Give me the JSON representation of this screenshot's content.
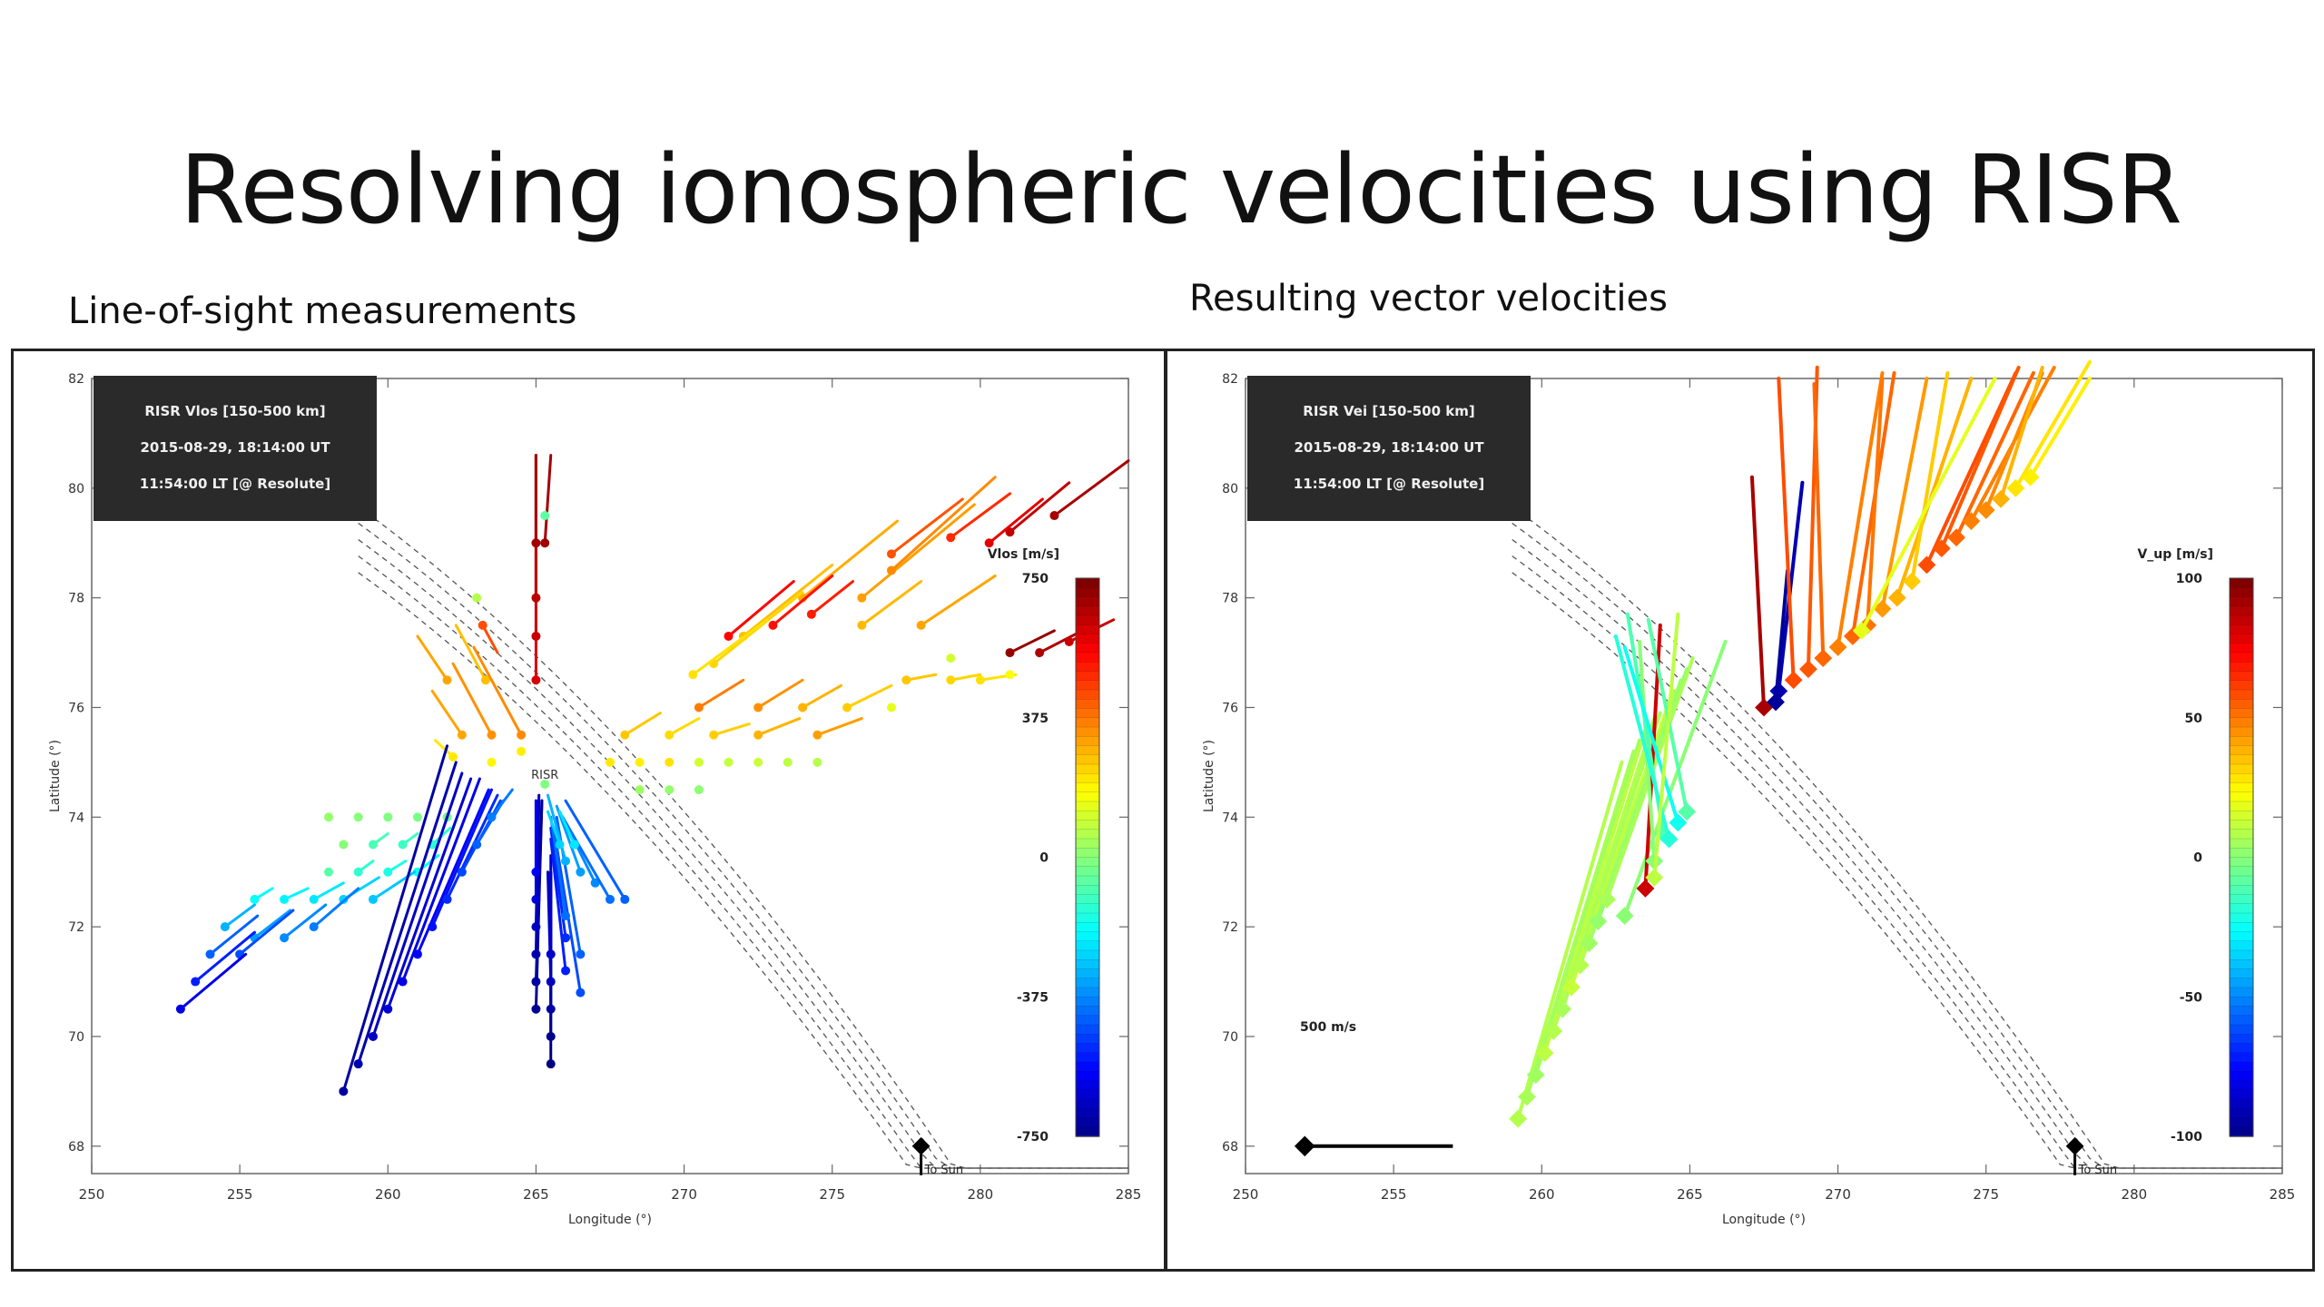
{
  "title": "Resolving ionospheric velocities using RISR",
  "left_panel_label": "Line-of-sight measurements",
  "right_panel_label": "Resulting vector velocities",
  "colors": {
    "panel_border": "#222222",
    "annotation_bg": "#2a2a2a",
    "contour": "#555555"
  },
  "chart_data": [
    {
      "type": "scatter",
      "subtype": "vector-map",
      "annotation": [
        "RISR Vlos [150-500 km]",
        "2015-08-29, 18:14:00 UT",
        "11:54:00 LT [@ Resolute]"
      ],
      "xlabel": "Longitude (°)",
      "ylabel": "Latitude (°)",
      "xlim": [
        250,
        285
      ],
      "ylim": [
        67.5,
        82
      ],
      "xticks": [
        "250",
        "255",
        "260",
        "265",
        "270",
        "275",
        "280",
        "285"
      ],
      "yticks": [
        "68",
        "70",
        "72",
        "74",
        "76",
        "78",
        "80",
        "82"
      ],
      "site_label": "RISR",
      "site": [
        265.3,
        74.6
      ],
      "sun_label": "To Sun",
      "colorbar": {
        "label": "Vlos [m/s]",
        "range": [
          -750,
          750
        ],
        "ticks": [
          "750",
          "375",
          "0",
          "-375",
          "-750"
        ]
      },
      "vectors": [
        [
          265,
          76.5,
          0,
          4.1,
          620
        ],
        [
          265,
          77.3,
          0,
          3.3,
          640
        ],
        [
          265,
          78,
          0,
          2.6,
          660
        ],
        [
          265,
          79,
          0,
          1.6,
          700
        ],
        [
          265.3,
          79,
          0.2,
          1.6,
          700
        ],
        [
          265.3,
          79.5,
          0,
          0,
          -50
        ],
        [
          276,
          78,
          3.8,
          1.7,
          330
        ],
        [
          277,
          78.5,
          3.5,
          1.7,
          360
        ],
        [
          274,
          78,
          3.2,
          1.4,
          310
        ],
        [
          272,
          77.3,
          3,
          1.3,
          280
        ],
        [
          271,
          76.8,
          3,
          1.3,
          250
        ],
        [
          270.3,
          76.6,
          2.5,
          1,
          230
        ],
        [
          276,
          77.5,
          2,
          0.8,
          290
        ],
        [
          278,
          77.5,
          2.5,
          0.9,
          320
        ],
        [
          282.5,
          79.5,
          2.5,
          1,
          690
        ],
        [
          281,
          79.2,
          2,
          0.9,
          650
        ],
        [
          280.3,
          79,
          1.8,
          0.8,
          600
        ],
        [
          277,
          78.8,
          2.4,
          1,
          440
        ],
        [
          279,
          79.1,
          2,
          0.8,
          500
        ],
        [
          274.3,
          77.7,
          1.4,
          0.6,
          520
        ],
        [
          271.5,
          77.3,
          2.2,
          1,
          560
        ],
        [
          273,
          77.5,
          2,
          0.9,
          540
        ],
        [
          281,
          77,
          1.5,
          0.4,
          720
        ],
        [
          282,
          77,
          1.8,
          0.5,
          680
        ],
        [
          283,
          77.2,
          1.5,
          0.4,
          640
        ],
        [
          279,
          76.9,
          0,
          0,
          120
        ],
        [
          270.5,
          76,
          1.5,
          0.5,
          380
        ],
        [
          272.5,
          76,
          1.5,
          0.5,
          350
        ],
        [
          274,
          76,
          1.3,
          0.4,
          300
        ],
        [
          275.5,
          76,
          1.5,
          0.4,
          260
        ],
        [
          277,
          76,
          0,
          0,
          150
        ],
        [
          277.5,
          76.5,
          1,
          0.1,
          270
        ],
        [
          279,
          76.5,
          1,
          0.1,
          250
        ],
        [
          280,
          76.5,
          1.2,
          0.1,
          230
        ],
        [
          281,
          76.6,
          0,
          0,
          180
        ],
        [
          268,
          75.5,
          1.2,
          0.4,
          270
        ],
        [
          269.5,
          75.5,
          1,
          0.3,
          240
        ],
        [
          271,
          75.5,
          1.2,
          0.2,
          260
        ],
        [
          272.5,
          75.5,
          1.4,
          0.3,
          300
        ],
        [
          274.5,
          75.5,
          1.5,
          0.3,
          330
        ],
        [
          267.5,
          75,
          0,
          0,
          220
        ],
        [
          268.5,
          75,
          0,
          0,
          210
        ],
        [
          269.5,
          75,
          0,
          0,
          230
        ],
        [
          270.5,
          75,
          0,
          0,
          120
        ],
        [
          271.5,
          75,
          0,
          0,
          100
        ],
        [
          272.5,
          75,
          0,
          0,
          110
        ],
        [
          273.5,
          75,
          0,
          0,
          90
        ],
        [
          274.5,
          75,
          0,
          0,
          80
        ],
        [
          268.5,
          74.5,
          0,
          0,
          40
        ],
        [
          269.5,
          74.5,
          0,
          0,
          30
        ],
        [
          270.5,
          74.5,
          0,
          0,
          20
        ],
        [
          265.3,
          74.6,
          0,
          0,
          0
        ],
        [
          263.3,
          76.5,
          -1,
          1,
          280
        ],
        [
          262,
          76.5,
          -1,
          0.8,
          320
        ],
        [
          264.5,
          75.5,
          -1.6,
          1.6,
          360
        ],
        [
          263.5,
          75.5,
          -1.3,
          1.3,
          350
        ],
        [
          262.5,
          75.5,
          -1,
          0.8,
          320
        ],
        [
          262.2,
          75.1,
          -0.6,
          0.3,
          220
        ],
        [
          263.5,
          75,
          0,
          0,
          200
        ],
        [
          264.5,
          75.2,
          0,
          0,
          210
        ],
        [
          263,
          78,
          0,
          0,
          80
        ],
        [
          263.2,
          77.5,
          0.5,
          -0.5,
          450
        ],
        [
          258,
          74,
          0,
          0,
          30
        ],
        [
          259,
          74,
          0,
          0,
          10
        ],
        [
          260,
          74,
          0,
          0,
          0
        ],
        [
          261,
          74,
          0,
          0,
          -10
        ],
        [
          262,
          74,
          0,
          0,
          -20
        ],
        [
          258.5,
          73.5,
          0,
          0,
          10
        ],
        [
          259.5,
          73.5,
          0.5,
          0.2,
          -80
        ],
        [
          260.5,
          73.5,
          0.5,
          0.2,
          -100
        ],
        [
          261.5,
          73.5,
          0.6,
          0.3,
          -120
        ],
        [
          258,
          73,
          0,
          0,
          -60
        ],
        [
          259,
          73,
          0.5,
          0.2,
          -120
        ],
        [
          260,
          73,
          0.6,
          0.2,
          -150
        ],
        [
          261,
          73,
          0.7,
          0.3,
          -170
        ],
        [
          255.5,
          72.5,
          0.6,
          0.2,
          -180
        ],
        [
          256.5,
          72.5,
          0.8,
          0.2,
          -200
        ],
        [
          257.5,
          72.5,
          1,
          0.3,
          -220
        ],
        [
          258.5,
          72.5,
          1.2,
          0.4,
          -250
        ],
        [
          259.5,
          72.5,
          1.4,
          0.5,
          -270
        ],
        [
          254.5,
          72,
          1,
          0.4,
          -300
        ],
        [
          255.5,
          71.8,
          1.2,
          0.5,
          -330
        ],
        [
          256.5,
          71.8,
          1.4,
          0.6,
          -360
        ],
        [
          257.5,
          72,
          1.5,
          0.7,
          -380
        ],
        [
          254,
          71.5,
          1.6,
          0.7,
          -420
        ],
        [
          255,
          71.5,
          1.8,
          0.8,
          -450
        ],
        [
          253.5,
          71,
          2,
          0.9,
          -520
        ],
        [
          253,
          70.5,
          2.2,
          1,
          -600
        ],
        [
          258.5,
          69,
          3.5,
          6.3,
          -700
        ],
        [
          259,
          69.5,
          3.3,
          5.5,
          -680
        ],
        [
          259.5,
          70,
          3,
          4.8,
          -650
        ],
        [
          260,
          70.5,
          2.8,
          4.2,
          -630
        ],
        [
          260.5,
          71,
          2.6,
          3.7,
          -600
        ],
        [
          261,
          71.5,
          2.4,
          3,
          -570
        ],
        [
          261.5,
          72,
          2,
          2.5,
          -540
        ],
        [
          262,
          72.5,
          1.7,
          1.9,
          -500
        ],
        [
          262.5,
          73,
          1.3,
          1.3,
          -460
        ],
        [
          263,
          73.5,
          0.9,
          0.8,
          -420
        ],
        [
          263.5,
          74,
          0.7,
          0.5,
          -380
        ],
        [
          265,
          70.5,
          0.2,
          3.8,
          -720
        ],
        [
          265,
          71,
          0.2,
          3.3,
          -700
        ],
        [
          265,
          71.5,
          0.1,
          2.8,
          -680
        ],
        [
          265,
          72,
          0.1,
          2.4,
          -650
        ],
        [
          265,
          72.5,
          0,
          1.8,
          -620
        ],
        [
          265,
          73,
          0,
          1.3,
          -580
        ],
        [
          265.5,
          69.5,
          0,
          3.5,
          -760
        ],
        [
          265.5,
          70,
          0,
          3,
          -730
        ],
        [
          265.5,
          70.5,
          0,
          2.5,
          -700
        ],
        [
          265.5,
          71,
          -0.1,
          2,
          -660
        ],
        [
          265.5,
          71.5,
          0,
          1.8,
          -640
        ],
        [
          266,
          71.2,
          -0.5,
          2.4,
          -520
        ],
        [
          266,
          71.8,
          -0.5,
          2,
          -500
        ],
        [
          266.5,
          70.8,
          -0.9,
          3,
          -450
        ],
        [
          266.5,
          71.5,
          -0.8,
          2.5,
          -420
        ],
        [
          266,
          72.2,
          -0.5,
          1.8,
          -400
        ],
        [
          266,
          73.2,
          -0.6,
          1.2,
          -300
        ],
        [
          266.5,
          73,
          -0.8,
          1.2,
          -330
        ],
        [
          267,
          72.8,
          -1.2,
          1.3,
          -360
        ],
        [
          267.5,
          72.5,
          -1.6,
          1.5,
          -400
        ],
        [
          268,
          72.5,
          -2,
          1.8,
          -420
        ],
        [
          265.8,
          73.5,
          -0.4,
          0.6,
          -250
        ],
        [
          266.3,
          73.5,
          -0.5,
          0.6,
          -220
        ]
      ]
    },
    {
      "type": "scatter",
      "subtype": "vector-map",
      "annotation": [
        "RISR Vei [150-500 km]",
        "2015-08-29, 18:14:00 UT",
        "11:54:00 LT [@ Resolute]"
      ],
      "xlabel": "Longitude (°)",
      "ylabel": "Latitude (°)",
      "xlim": [
        250,
        285
      ],
      "ylim": [
        67.5,
        82
      ],
      "xticks": [
        "250",
        "255",
        "260",
        "265",
        "270",
        "275",
        "280",
        "285"
      ],
      "yticks": [
        "68",
        "70",
        "72",
        "74",
        "76",
        "78",
        "80",
        "82"
      ],
      "sun_label": "To Sun",
      "scale_label": "500 m/s",
      "colorbar": {
        "label": "V_up [m/s]",
        "range": [
          -100,
          100
        ],
        "ticks": [
          "100",
          "50",
          "0",
          "-50",
          "-100"
        ]
      },
      "vectors": [
        [
          259.2,
          68.5,
          3.5,
          6.5,
          10
        ],
        [
          259.5,
          68.9,
          3.6,
          6.3,
          8
        ],
        [
          259.8,
          69.3,
          3.5,
          6.1,
          6
        ],
        [
          260.1,
          69.7,
          3.4,
          5.9,
          12
        ],
        [
          260.4,
          70.1,
          3.4,
          5.7,
          10
        ],
        [
          260.7,
          70.5,
          3.3,
          5.4,
          8
        ],
        [
          261,
          70.9,
          3.3,
          5.2,
          14
        ],
        [
          261.3,
          71.3,
          3.2,
          5,
          10
        ],
        [
          261.6,
          71.7,
          3.1,
          4.8,
          6
        ],
        [
          261.9,
          72.1,
          3,
          4.6,
          4
        ],
        [
          262.2,
          72.5,
          2.9,
          4.4,
          8
        ],
        [
          262.8,
          72.2,
          3.4,
          5,
          2
        ],
        [
          263.5,
          72.7,
          0.5,
          4.8,
          85
        ],
        [
          263.8,
          73.2,
          -0.5,
          4,
          2
        ],
        [
          264.1,
          73.7,
          -1.2,
          4,
          -10
        ],
        [
          264.3,
          73.6,
          -1.8,
          3.7,
          -18
        ],
        [
          264.6,
          73.9,
          -1.8,
          3.2,
          -22
        ],
        [
          264.9,
          74.1,
          -1.3,
          3.5,
          -8
        ],
        [
          263.8,
          72.9,
          0.8,
          4.8,
          12
        ],
        [
          267.5,
          76,
          -0.4,
          4.2,
          92
        ],
        [
          268,
          76.3,
          0.8,
          3.8,
          -90
        ],
        [
          267.9,
          76.1,
          0.4,
          2.4,
          -95
        ],
        [
          268.5,
          76.5,
          -0.5,
          5.5,
          60
        ],
        [
          269,
          76.7,
          0.3,
          5.5,
          58
        ],
        [
          269.5,
          76.9,
          -0.3,
          5,
          55
        ],
        [
          270,
          77.1,
          1.5,
          5,
          50
        ],
        [
          270.5,
          77.3,
          1.4,
          4.8,
          55
        ],
        [
          271,
          77.5,
          0.5,
          4.5,
          52
        ],
        [
          271.5,
          77.8,
          1.5,
          4.2,
          45
        ],
        [
          272,
          78,
          2.5,
          4,
          40
        ],
        [
          272.5,
          78.3,
          1.2,
          3.8,
          35
        ],
        [
          273,
          78.6,
          3,
          3.5,
          60
        ],
        [
          273.5,
          78.9,
          2.6,
          3.3,
          58
        ],
        [
          274,
          79.1,
          2.6,
          3,
          55
        ],
        [
          274.5,
          79.4,
          2.8,
          2.8,
          50
        ],
        [
          275,
          79.6,
          1.9,
          2.5,
          48
        ],
        [
          275.5,
          79.8,
          1.4,
          2.4,
          40
        ],
        [
          276,
          80,
          2.5,
          2.3,
          30
        ],
        [
          276.5,
          80.2,
          2,
          1.8,
          28
        ],
        [
          270.8,
          77.4,
          4.5,
          4.6,
          20
        ]
      ]
    }
  ]
}
